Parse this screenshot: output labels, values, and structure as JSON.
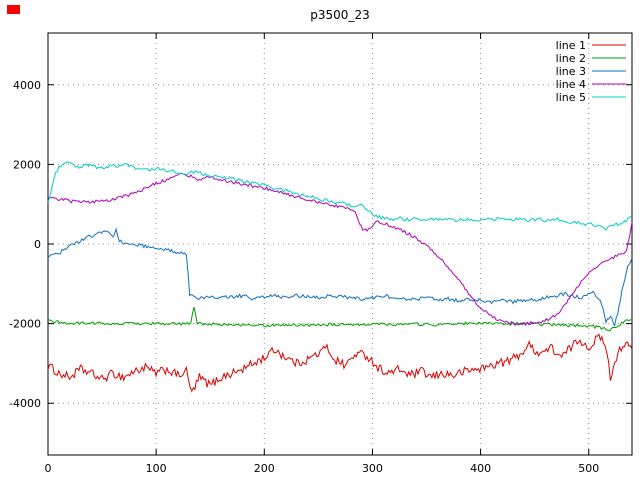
{
  "window": {
    "corner_marker_color": "#ff0000"
  },
  "chart_data": {
    "type": "line",
    "title": "p3500_23",
    "xlabel": "",
    "ylabel": "",
    "xlim": [
      0,
      540
    ],
    "ylim": [
      -5300,
      5300
    ],
    "xticks": [
      0,
      100,
      200,
      300,
      400,
      500
    ],
    "yticks": [
      -4000,
      -2000,
      0,
      2000,
      4000
    ],
    "grid": true,
    "legend": {
      "position": "top-right"
    },
    "series": [
      {
        "name": "line 1",
        "color": "#dd0000",
        "noise": 110,
        "points": [
          [
            0,
            -3050
          ],
          [
            10,
            -3250
          ],
          [
            20,
            -3350
          ],
          [
            30,
            -3150
          ],
          [
            40,
            -3250
          ],
          [
            50,
            -3400
          ],
          [
            60,
            -3250
          ],
          [
            70,
            -3350
          ],
          [
            80,
            -3200
          ],
          [
            90,
            -3100
          ],
          [
            100,
            -3250
          ],
          [
            110,
            -3150
          ],
          [
            120,
            -3300
          ],
          [
            128,
            -3200
          ],
          [
            133,
            -3750
          ],
          [
            140,
            -3350
          ],
          [
            150,
            -3550
          ],
          [
            160,
            -3350
          ],
          [
            170,
            -3250
          ],
          [
            180,
            -3150
          ],
          [
            190,
            -3000
          ],
          [
            200,
            -2850
          ],
          [
            210,
            -2650
          ],
          [
            220,
            -2850
          ],
          [
            230,
            -3000
          ],
          [
            240,
            -2900
          ],
          [
            250,
            -2750
          ],
          [
            258,
            -2600
          ],
          [
            265,
            -2900
          ],
          [
            275,
            -3050
          ],
          [
            285,
            -2750
          ],
          [
            295,
            -2800
          ],
          [
            305,
            -3100
          ],
          [
            315,
            -3250
          ],
          [
            325,
            -3150
          ],
          [
            335,
            -3300
          ],
          [
            345,
            -3200
          ],
          [
            355,
            -3350
          ],
          [
            365,
            -3250
          ],
          [
            375,
            -3300
          ],
          [
            385,
            -3200
          ],
          [
            395,
            -3150
          ],
          [
            405,
            -3100
          ],
          [
            415,
            -3000
          ],
          [
            425,
            -2950
          ],
          [
            435,
            -2800
          ],
          [
            445,
            -2550
          ],
          [
            455,
            -2750
          ],
          [
            465,
            -2600
          ],
          [
            475,
            -2850
          ],
          [
            485,
            -2550
          ],
          [
            492,
            -2400
          ],
          [
            500,
            -2600
          ],
          [
            508,
            -2350
          ],
          [
            515,
            -2450
          ],
          [
            520,
            -3350
          ],
          [
            527,
            -2700
          ],
          [
            533,
            -2500
          ],
          [
            540,
            -2650
          ]
        ]
      },
      {
        "name": "line 2",
        "color": "#00a000",
        "noise": 35,
        "points": [
          [
            0,
            -1930
          ],
          [
            20,
            -2000
          ],
          [
            40,
            -1980
          ],
          [
            60,
            -2010
          ],
          [
            80,
            -1990
          ],
          [
            100,
            -2000
          ],
          [
            120,
            -2010
          ],
          [
            132,
            -1990
          ],
          [
            135,
            -1570
          ],
          [
            138,
            -2000
          ],
          [
            160,
            -2020
          ],
          [
            180,
            -2040
          ],
          [
            200,
            -2050
          ],
          [
            220,
            -2030
          ],
          [
            240,
            -2040
          ],
          [
            260,
            -2020
          ],
          [
            280,
            -2040
          ],
          [
            300,
            -2000
          ],
          [
            320,
            -2020
          ],
          [
            340,
            -2010
          ],
          [
            360,
            -2030
          ],
          [
            380,
            -2000
          ],
          [
            400,
            -1990
          ],
          [
            420,
            -2010
          ],
          [
            440,
            -2000
          ],
          [
            460,
            -2020
          ],
          [
            480,
            -2040
          ],
          [
            500,
            -2060
          ],
          [
            510,
            -2100
          ],
          [
            518,
            -2160
          ],
          [
            525,
            -2100
          ],
          [
            532,
            -1950
          ],
          [
            540,
            -1900
          ]
        ]
      },
      {
        "name": "line 3",
        "color": "#1070c0",
        "noise": 45,
        "points": [
          [
            0,
            -330
          ],
          [
            5,
            -280
          ],
          [
            10,
            -230
          ],
          [
            20,
            -60
          ],
          [
            30,
            80
          ],
          [
            40,
            200
          ],
          [
            48,
            290
          ],
          [
            55,
            330
          ],
          [
            60,
            180
          ],
          [
            63,
            350
          ],
          [
            66,
            100
          ],
          [
            70,
            30
          ],
          [
            75,
            -20
          ],
          [
            80,
            0
          ],
          [
            90,
            -60
          ],
          [
            100,
            -80
          ],
          [
            110,
            -150
          ],
          [
            120,
            -220
          ],
          [
            128,
            -280
          ],
          [
            131,
            -1300
          ],
          [
            140,
            -1380
          ],
          [
            150,
            -1300
          ],
          [
            160,
            -1350
          ],
          [
            170,
            -1320
          ],
          [
            180,
            -1300
          ],
          [
            190,
            -1380
          ],
          [
            200,
            -1320
          ],
          [
            210,
            -1300
          ],
          [
            220,
            -1350
          ],
          [
            230,
            -1300
          ],
          [
            240,
            -1320
          ],
          [
            250,
            -1350
          ],
          [
            260,
            -1300
          ],
          [
            270,
            -1320
          ],
          [
            280,
            -1350
          ],
          [
            290,
            -1380
          ],
          [
            300,
            -1350
          ],
          [
            310,
            -1300
          ],
          [
            320,
            -1350
          ],
          [
            330,
            -1400
          ],
          [
            340,
            -1380
          ],
          [
            350,
            -1350
          ],
          [
            360,
            -1400
          ],
          [
            370,
            -1380
          ],
          [
            380,
            -1420
          ],
          [
            390,
            -1400
          ],
          [
            400,
            -1420
          ],
          [
            410,
            -1450
          ],
          [
            420,
            -1400
          ],
          [
            430,
            -1450
          ],
          [
            440,
            -1420
          ],
          [
            450,
            -1400
          ],
          [
            460,
            -1350
          ],
          [
            470,
            -1300
          ],
          [
            478,
            -1250
          ],
          [
            485,
            -1300
          ],
          [
            492,
            -1350
          ],
          [
            498,
            -1280
          ],
          [
            504,
            -1200
          ],
          [
            508,
            -1350
          ],
          [
            512,
            -1500
          ],
          [
            516,
            -1950
          ],
          [
            520,
            -1800
          ],
          [
            524,
            -2050
          ],
          [
            528,
            -1600
          ],
          [
            532,
            -1000
          ],
          [
            536,
            -550
          ],
          [
            540,
            -350
          ]
        ]
      },
      {
        "name": "line 4",
        "color": "#b000c0",
        "noise": 40,
        "points": [
          [
            0,
            1200
          ],
          [
            10,
            1130
          ],
          [
            20,
            1080
          ],
          [
            30,
            1050
          ],
          [
            40,
            1060
          ],
          [
            50,
            1080
          ],
          [
            60,
            1120
          ],
          [
            70,
            1200
          ],
          [
            80,
            1280
          ],
          [
            90,
            1400
          ],
          [
            100,
            1520
          ],
          [
            110,
            1620
          ],
          [
            118,
            1720
          ],
          [
            125,
            1760
          ],
          [
            132,
            1700
          ],
          [
            140,
            1620
          ],
          [
            148,
            1680
          ],
          [
            155,
            1640
          ],
          [
            165,
            1580
          ],
          [
            175,
            1520
          ],
          [
            185,
            1480
          ],
          [
            195,
            1420
          ],
          [
            205,
            1380
          ],
          [
            215,
            1300
          ],
          [
            225,
            1220
          ],
          [
            235,
            1150
          ],
          [
            245,
            1080
          ],
          [
            255,
            1000
          ],
          [
            265,
            960
          ],
          [
            272,
            930
          ],
          [
            278,
            880
          ],
          [
            283,
            840
          ],
          [
            287,
            600
          ],
          [
            291,
            380
          ],
          [
            295,
            330
          ],
          [
            300,
            480
          ],
          [
            305,
            560
          ],
          [
            310,
            520
          ],
          [
            315,
            480
          ],
          [
            320,
            420
          ],
          [
            328,
            330
          ],
          [
            336,
            220
          ],
          [
            344,
            80
          ],
          [
            352,
            -80
          ],
          [
            360,
            -300
          ],
          [
            368,
            -520
          ],
          [
            376,
            -780
          ],
          [
            384,
            -1050
          ],
          [
            392,
            -1350
          ],
          [
            400,
            -1600
          ],
          [
            408,
            -1780
          ],
          [
            416,
            -1900
          ],
          [
            424,
            -1960
          ],
          [
            432,
            -2000
          ],
          [
            440,
            -2010
          ],
          [
            448,
            -1980
          ],
          [
            456,
            -1950
          ],
          [
            464,
            -1880
          ],
          [
            472,
            -1750
          ],
          [
            478,
            -1550
          ],
          [
            484,
            -1300
          ],
          [
            490,
            -1050
          ],
          [
            496,
            -850
          ],
          [
            502,
            -680
          ],
          [
            508,
            -550
          ],
          [
            514,
            -450
          ],
          [
            520,
            -380
          ],
          [
            526,
            -300
          ],
          [
            531,
            -250
          ],
          [
            535,
            -150
          ],
          [
            538,
            200
          ],
          [
            540,
            550
          ]
        ]
      },
      {
        "name": "line 5",
        "color": "#00cccc",
        "noise": 45,
        "points": [
          [
            0,
            1080
          ],
          [
            3,
            1350
          ],
          [
            6,
            1700
          ],
          [
            10,
            1950
          ],
          [
            14,
            2030
          ],
          [
            18,
            2060
          ],
          [
            24,
            1980
          ],
          [
            30,
            1940
          ],
          [
            36,
            2000
          ],
          [
            42,
            1960
          ],
          [
            48,
            1900
          ],
          [
            54,
            1950
          ],
          [
            60,
            1980
          ],
          [
            66,
            1940
          ],
          [
            72,
            1990
          ],
          [
            78,
            1930
          ],
          [
            84,
            1880
          ],
          [
            90,
            1900
          ],
          [
            96,
            1870
          ],
          [
            102,
            1900
          ],
          [
            108,
            1860
          ],
          [
            114,
            1830
          ],
          [
            120,
            1800
          ],
          [
            128,
            1770
          ],
          [
            136,
            1800
          ],
          [
            144,
            1760
          ],
          [
            152,
            1720
          ],
          [
            160,
            1690
          ],
          [
            168,
            1650
          ],
          [
            176,
            1610
          ],
          [
            184,
            1560
          ],
          [
            192,
            1510
          ],
          [
            200,
            1470
          ],
          [
            208,
            1420
          ],
          [
            216,
            1360
          ],
          [
            224,
            1310
          ],
          [
            232,
            1260
          ],
          [
            240,
            1210
          ],
          [
            248,
            1150
          ],
          [
            256,
            1100
          ],
          [
            264,
            1060
          ],
          [
            272,
            1010
          ],
          [
            280,
            970
          ],
          [
            288,
            1000
          ],
          [
            296,
            860
          ],
          [
            302,
            720
          ],
          [
            308,
            660
          ],
          [
            316,
            630
          ],
          [
            324,
            650
          ],
          [
            332,
            610
          ],
          [
            340,
            640
          ],
          [
            348,
            610
          ],
          [
            356,
            640
          ],
          [
            364,
            600
          ],
          [
            372,
            630
          ],
          [
            380,
            590
          ],
          [
            388,
            630
          ],
          [
            396,
            600
          ],
          [
            404,
            640
          ],
          [
            412,
            610
          ],
          [
            420,
            640
          ],
          [
            428,
            600
          ],
          [
            436,
            630
          ],
          [
            444,
            590
          ],
          [
            452,
            630
          ],
          [
            460,
            600
          ],
          [
            468,
            630
          ],
          [
            476,
            590
          ],
          [
            484,
            560
          ],
          [
            492,
            530
          ],
          [
            500,
            500
          ],
          [
            506,
            460
          ],
          [
            511,
            420
          ],
          [
            516,
            390
          ],
          [
            521,
            440
          ],
          [
            527,
            500
          ],
          [
            533,
            560
          ],
          [
            540,
            700
          ]
        ]
      }
    ]
  }
}
